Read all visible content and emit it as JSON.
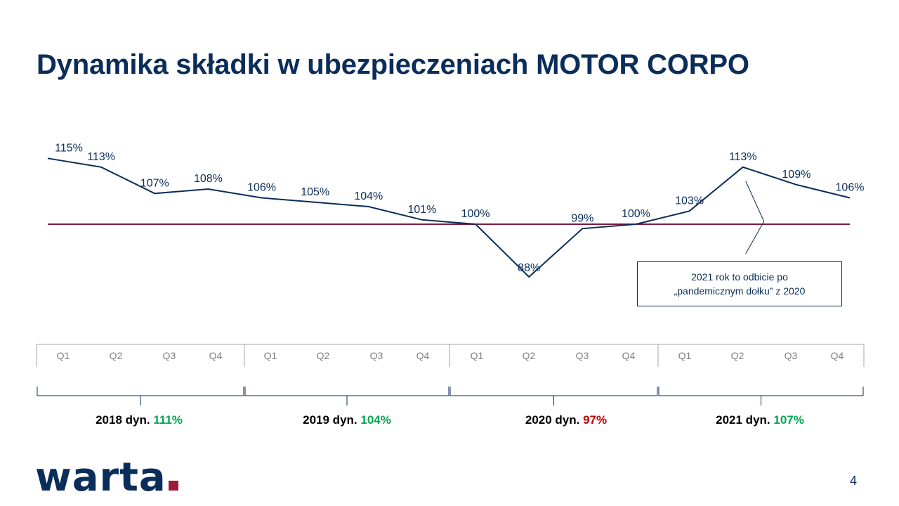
{
  "title": "Dynamika składki w ubezpieczeniach MOTOR CORPO",
  "chart_data": {
    "type": "line",
    "categories": [
      "Q1",
      "Q2",
      "Q3",
      "Q4",
      "Q1",
      "Q2",
      "Q3",
      "Q4",
      "Q1",
      "Q2",
      "Q3",
      "Q4",
      "Q1",
      "Q2",
      "Q3",
      "Q4"
    ],
    "values": [
      115,
      113,
      107,
      108,
      106,
      105,
      104,
      101,
      100,
      88,
      99,
      100,
      103,
      113,
      109,
      106
    ],
    "data_labels": [
      "115%",
      "113%",
      "107%",
      "108%",
      "106%",
      "105%",
      "104%",
      "101%",
      "100%",
      "88%",
      "99%",
      "100%",
      "103%",
      "113%",
      "109%",
      "106%"
    ],
    "reference_line": 100,
    "years": [
      {
        "year_text": "2018 dyn.",
        "dyn": "111%",
        "trend": "up"
      },
      {
        "year_text": "2019 dyn.",
        "dyn": "104%",
        "trend": "up"
      },
      {
        "year_text": "2020 dyn.",
        "dyn": "97%",
        "trend": "down"
      },
      {
        "year_text": "2021 dyn.",
        "dyn": "107%",
        "trend": "up"
      }
    ],
    "line_color": "#0a2d5a",
    "reference_color": "#7a1c3e"
  },
  "callout": {
    "line1": "2021 rok to odbicie po",
    "line2": "„pandemicznym dołku” z 2020"
  },
  "logo_text": "warta",
  "page_number": "4"
}
